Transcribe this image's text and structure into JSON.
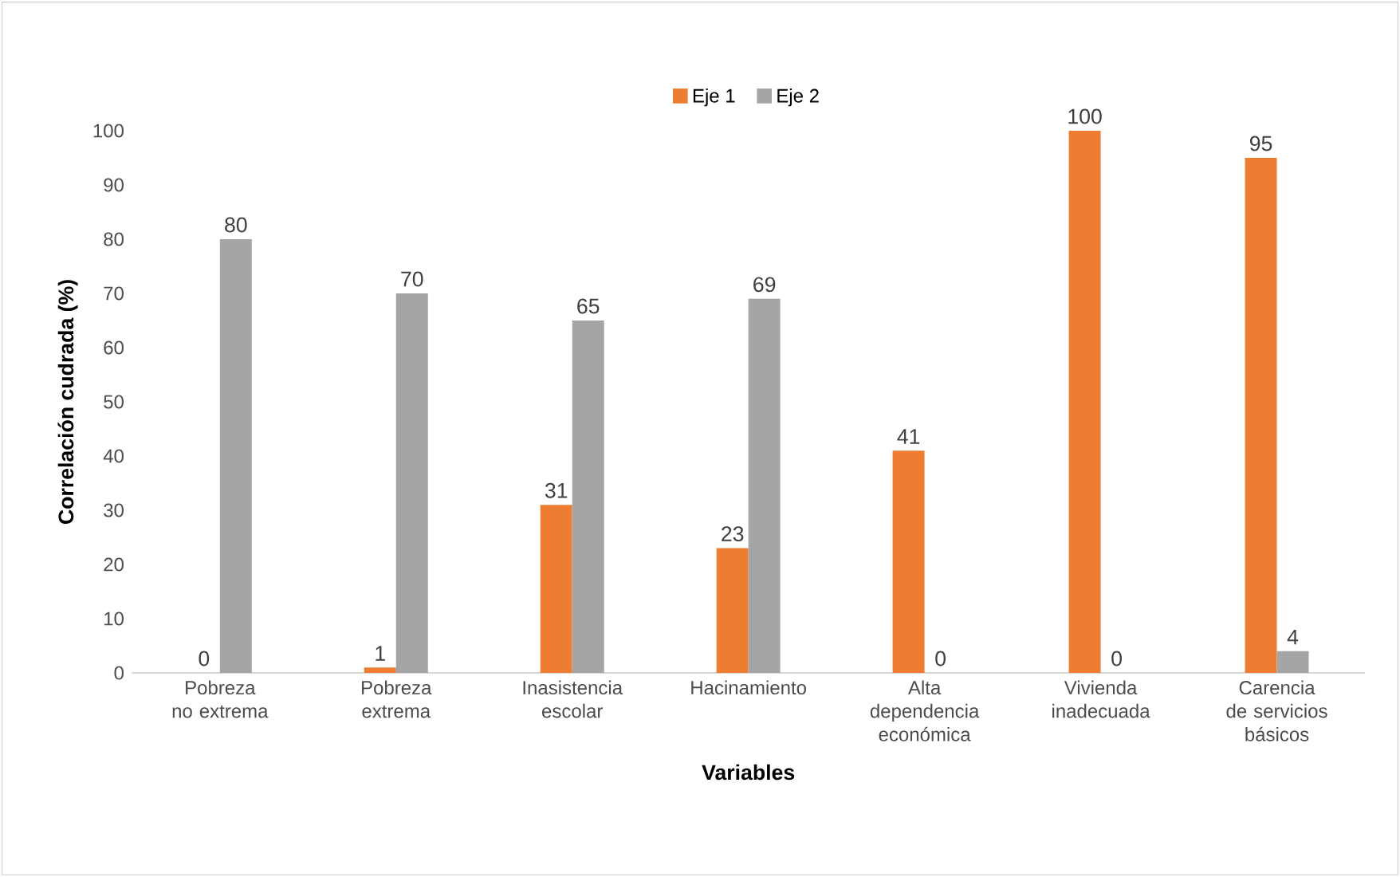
{
  "chart_data": {
    "type": "bar",
    "categories": [
      "Pobreza no extrema",
      "Pobreza extrema",
      "Inasistencia escolar",
      "Hacinamiento",
      "Alta dependencia económica",
      "Vivienda inadecuada",
      "Carencia de servicios básicos"
    ],
    "series": [
      {
        "name": "Eje 1",
        "color": "#ed7d31",
        "values": [
          0,
          1,
          31,
          23,
          41,
          100,
          95
        ]
      },
      {
        "name": "Eje 2",
        "color": "#a5a5a5",
        "values": [
          80,
          70,
          65,
          69,
          0,
          0,
          4
        ]
      }
    ],
    "xlabel": "Variables",
    "ylabel": "Correlación cudrada (%)",
    "ylim": [
      0,
      100
    ],
    "yticks": [
      0,
      10,
      20,
      30,
      40,
      50,
      60,
      70,
      80,
      90,
      100
    ],
    "data_labels": true,
    "legend": "top",
    "grid": false
  }
}
